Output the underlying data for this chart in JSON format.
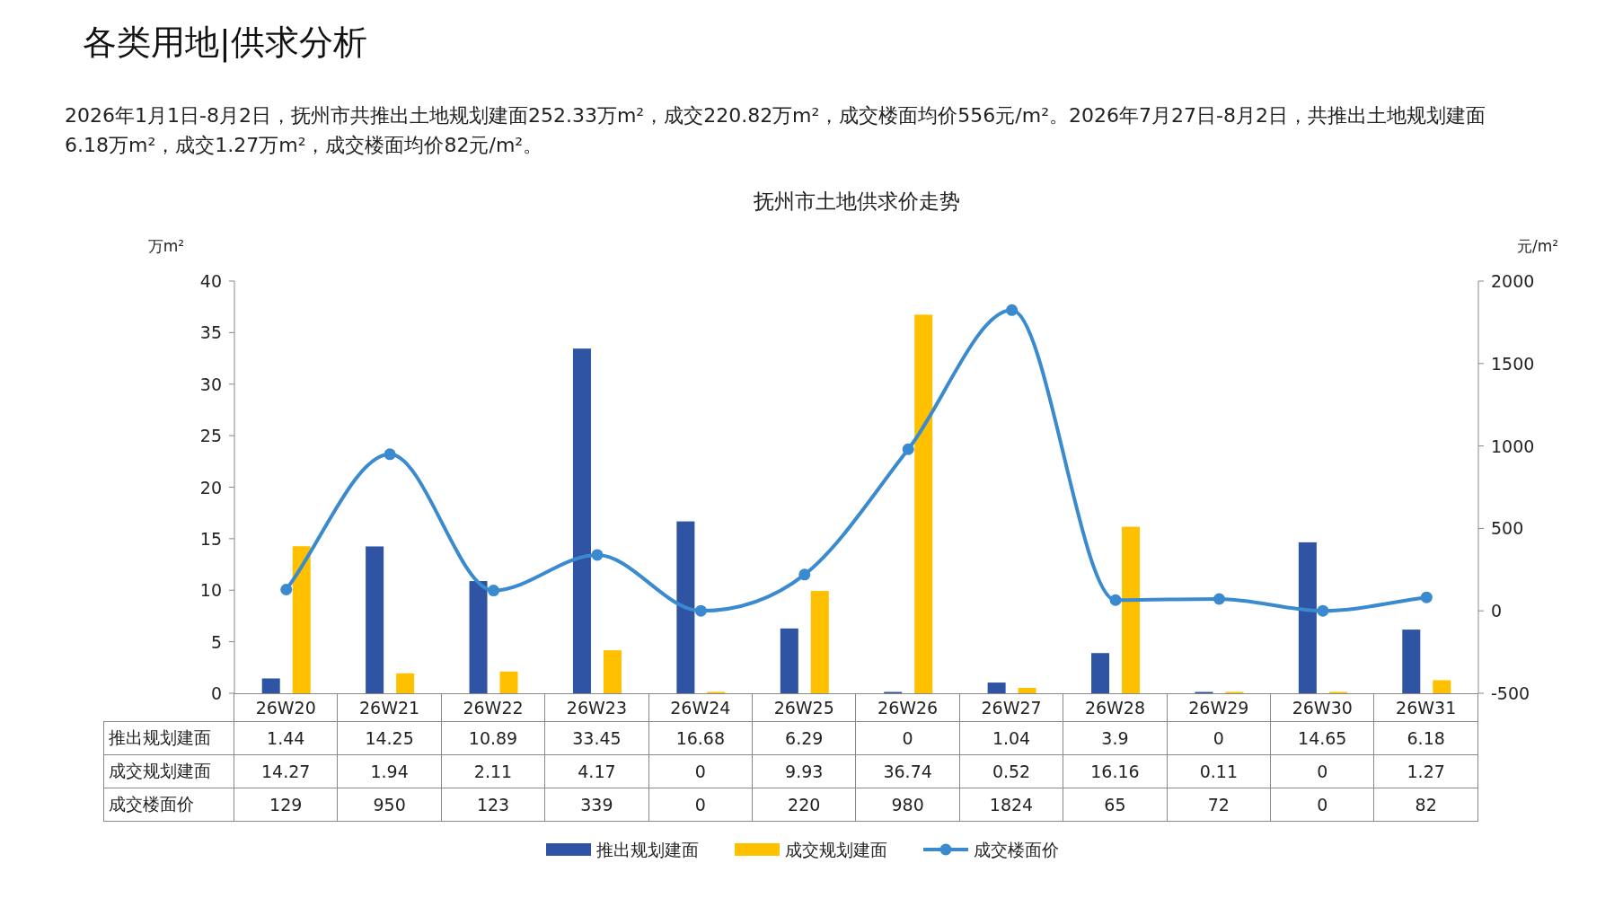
{
  "chart_data": {
    "type": "bar",
    "title": "抚州市土地供求价走势",
    "annotations": [
      "各类用地|供求分析",
      "2026年1月1日-8月2日，抚州市共推出土地规划建面252.33万m²，成交220.82万m²，成交楼面均价556元/m²。2026年7月27日-8月2日，共推出土地规划建面6.18万m²，成交1.27万m²，成交楼面均价82元/m²。"
    ],
    "ylabel": "万m²",
    "y2label": "元/m²",
    "categories": [
      "26W20",
      "26W21",
      "26W22",
      "26W23",
      "26W24",
      "26W25",
      "26W26",
      "26W27",
      "26W28",
      "26W29",
      "26W30",
      "26W31"
    ],
    "series": [
      {
        "name": "推出规划建面",
        "color": "#2e54a3",
        "values": [
          1.44,
          14.25,
          10.89,
          33.45,
          16.68,
          6.29,
          0,
          1.04,
          3.9,
          0,
          14.65,
          6.18
        ]
      },
      {
        "name": "成交规划建面",
        "color": "#ffc000",
        "values": [
          14.27,
          1.94,
          2.11,
          4.17,
          0,
          9.93,
          36.74,
          0.52,
          16.16,
          0.11,
          0,
          1.27
        ]
      },
      {
        "name": "成交楼面价",
        "type": "line",
        "axis": "y2",
        "color": "#3a8ad0",
        "values": [
          129,
          950,
          123,
          339,
          0,
          220,
          980,
          1824,
          65,
          72,
          0,
          82
        ]
      }
    ],
    "ylim": [
      0,
      40
    ],
    "yticks": [
      0,
      5,
      10,
      15,
      20,
      25,
      30,
      35,
      40
    ],
    "y2lim": [
      -500,
      2000
    ],
    "y2ticks": [
      -500,
      0,
      500,
      1000,
      1500,
      2000
    ],
    "data_labels": true,
    "legend": "bottom",
    "marker": "circle",
    "grid": false
  }
}
